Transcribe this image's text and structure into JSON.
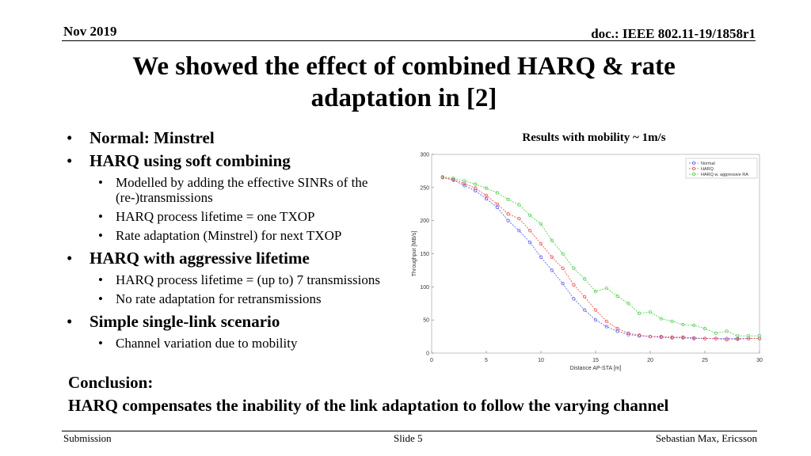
{
  "header": {
    "date": "Nov 2019",
    "doc": "doc.: IEEE 802.11-19/1858r1"
  },
  "title_line1": "We showed the effect of combined HARQ & rate",
  "title_line2": "adaptation in [2]",
  "bullets": [
    {
      "text": "Normal: Minstrel"
    },
    {
      "text": "HARQ using soft combining"
    },
    {
      "text": "Modelled by adding the effective SINRs of the (re-)transmissions"
    },
    {
      "text": "HARQ process lifetime = one TXOP"
    },
    {
      "text": "Rate adaptation (Minstrel) for next TXOP"
    },
    {
      "text": "HARQ with aggressive lifetime"
    },
    {
      "text": "HARQ process lifetime = (up to) 7 transmissions"
    },
    {
      "text": "No rate adaptation for retransmissions"
    },
    {
      "text": "Simple single-link scenario"
    },
    {
      "text": "Channel variation due to mobility"
    }
  ],
  "conclusion_label": "Conclusion:",
  "conclusion_text": "HARQ compensates the inability of the link adaptation to follow the varying channel",
  "footer": {
    "left": "Submission",
    "center": "Slide 5",
    "right": "Sebastian Max, Ericsson"
  },
  "chart_data": {
    "type": "line",
    "title": "Results with mobility ~ 1m/s",
    "xlabel": "Distance AP-STA [m]",
    "ylabel": "Throughput [MB/s]",
    "xlim": [
      0,
      30
    ],
    "ylim": [
      0,
      300
    ],
    "xticks": [
      0,
      5,
      10,
      15,
      20,
      25,
      30
    ],
    "yticks": [
      0,
      50,
      100,
      150,
      200,
      250,
      300
    ],
    "legend_position": "top-right",
    "x": [
      1,
      2,
      3,
      4,
      5,
      6,
      7,
      8,
      9,
      10,
      11,
      12,
      13,
      14,
      15,
      16,
      17,
      18,
      19,
      20,
      21,
      22,
      23,
      24,
      25,
      26,
      27,
      28,
      29,
      30
    ],
    "series": [
      {
        "name": "Normal",
        "color": "#5555ee",
        "marker": "circle",
        "values": [
          265,
          261,
          253,
          245,
          233,
          220,
          200,
          185,
          167,
          145,
          125,
          105,
          82,
          65,
          50,
          40,
          33,
          28,
          26,
          25,
          24,
          23,
          23,
          22,
          22,
          22,
          22,
          22,
          22,
          22
        ]
      },
      {
        "name": "HARQ",
        "color": "#ee4444",
        "marker": "circle",
        "values": [
          265,
          262,
          256,
          249,
          238,
          225,
          210,
          203,
          185,
          165,
          145,
          128,
          103,
          85,
          65,
          48,
          37,
          30,
          27,
          25,
          25,
          24,
          24,
          23,
          22,
          22,
          20,
          21,
          22,
          22
        ]
      },
      {
        "name": "HARQ w. aggressive RA",
        "color": "#44cc44",
        "marker": "circle",
        "values": [
          266,
          264,
          260,
          255,
          249,
          242,
          232,
          224,
          208,
          195,
          170,
          150,
          128,
          112,
          93,
          98,
          86,
          75,
          60,
          62,
          52,
          48,
          43,
          42,
          37,
          30,
          33,
          26,
          26,
          26
        ]
      }
    ]
  }
}
